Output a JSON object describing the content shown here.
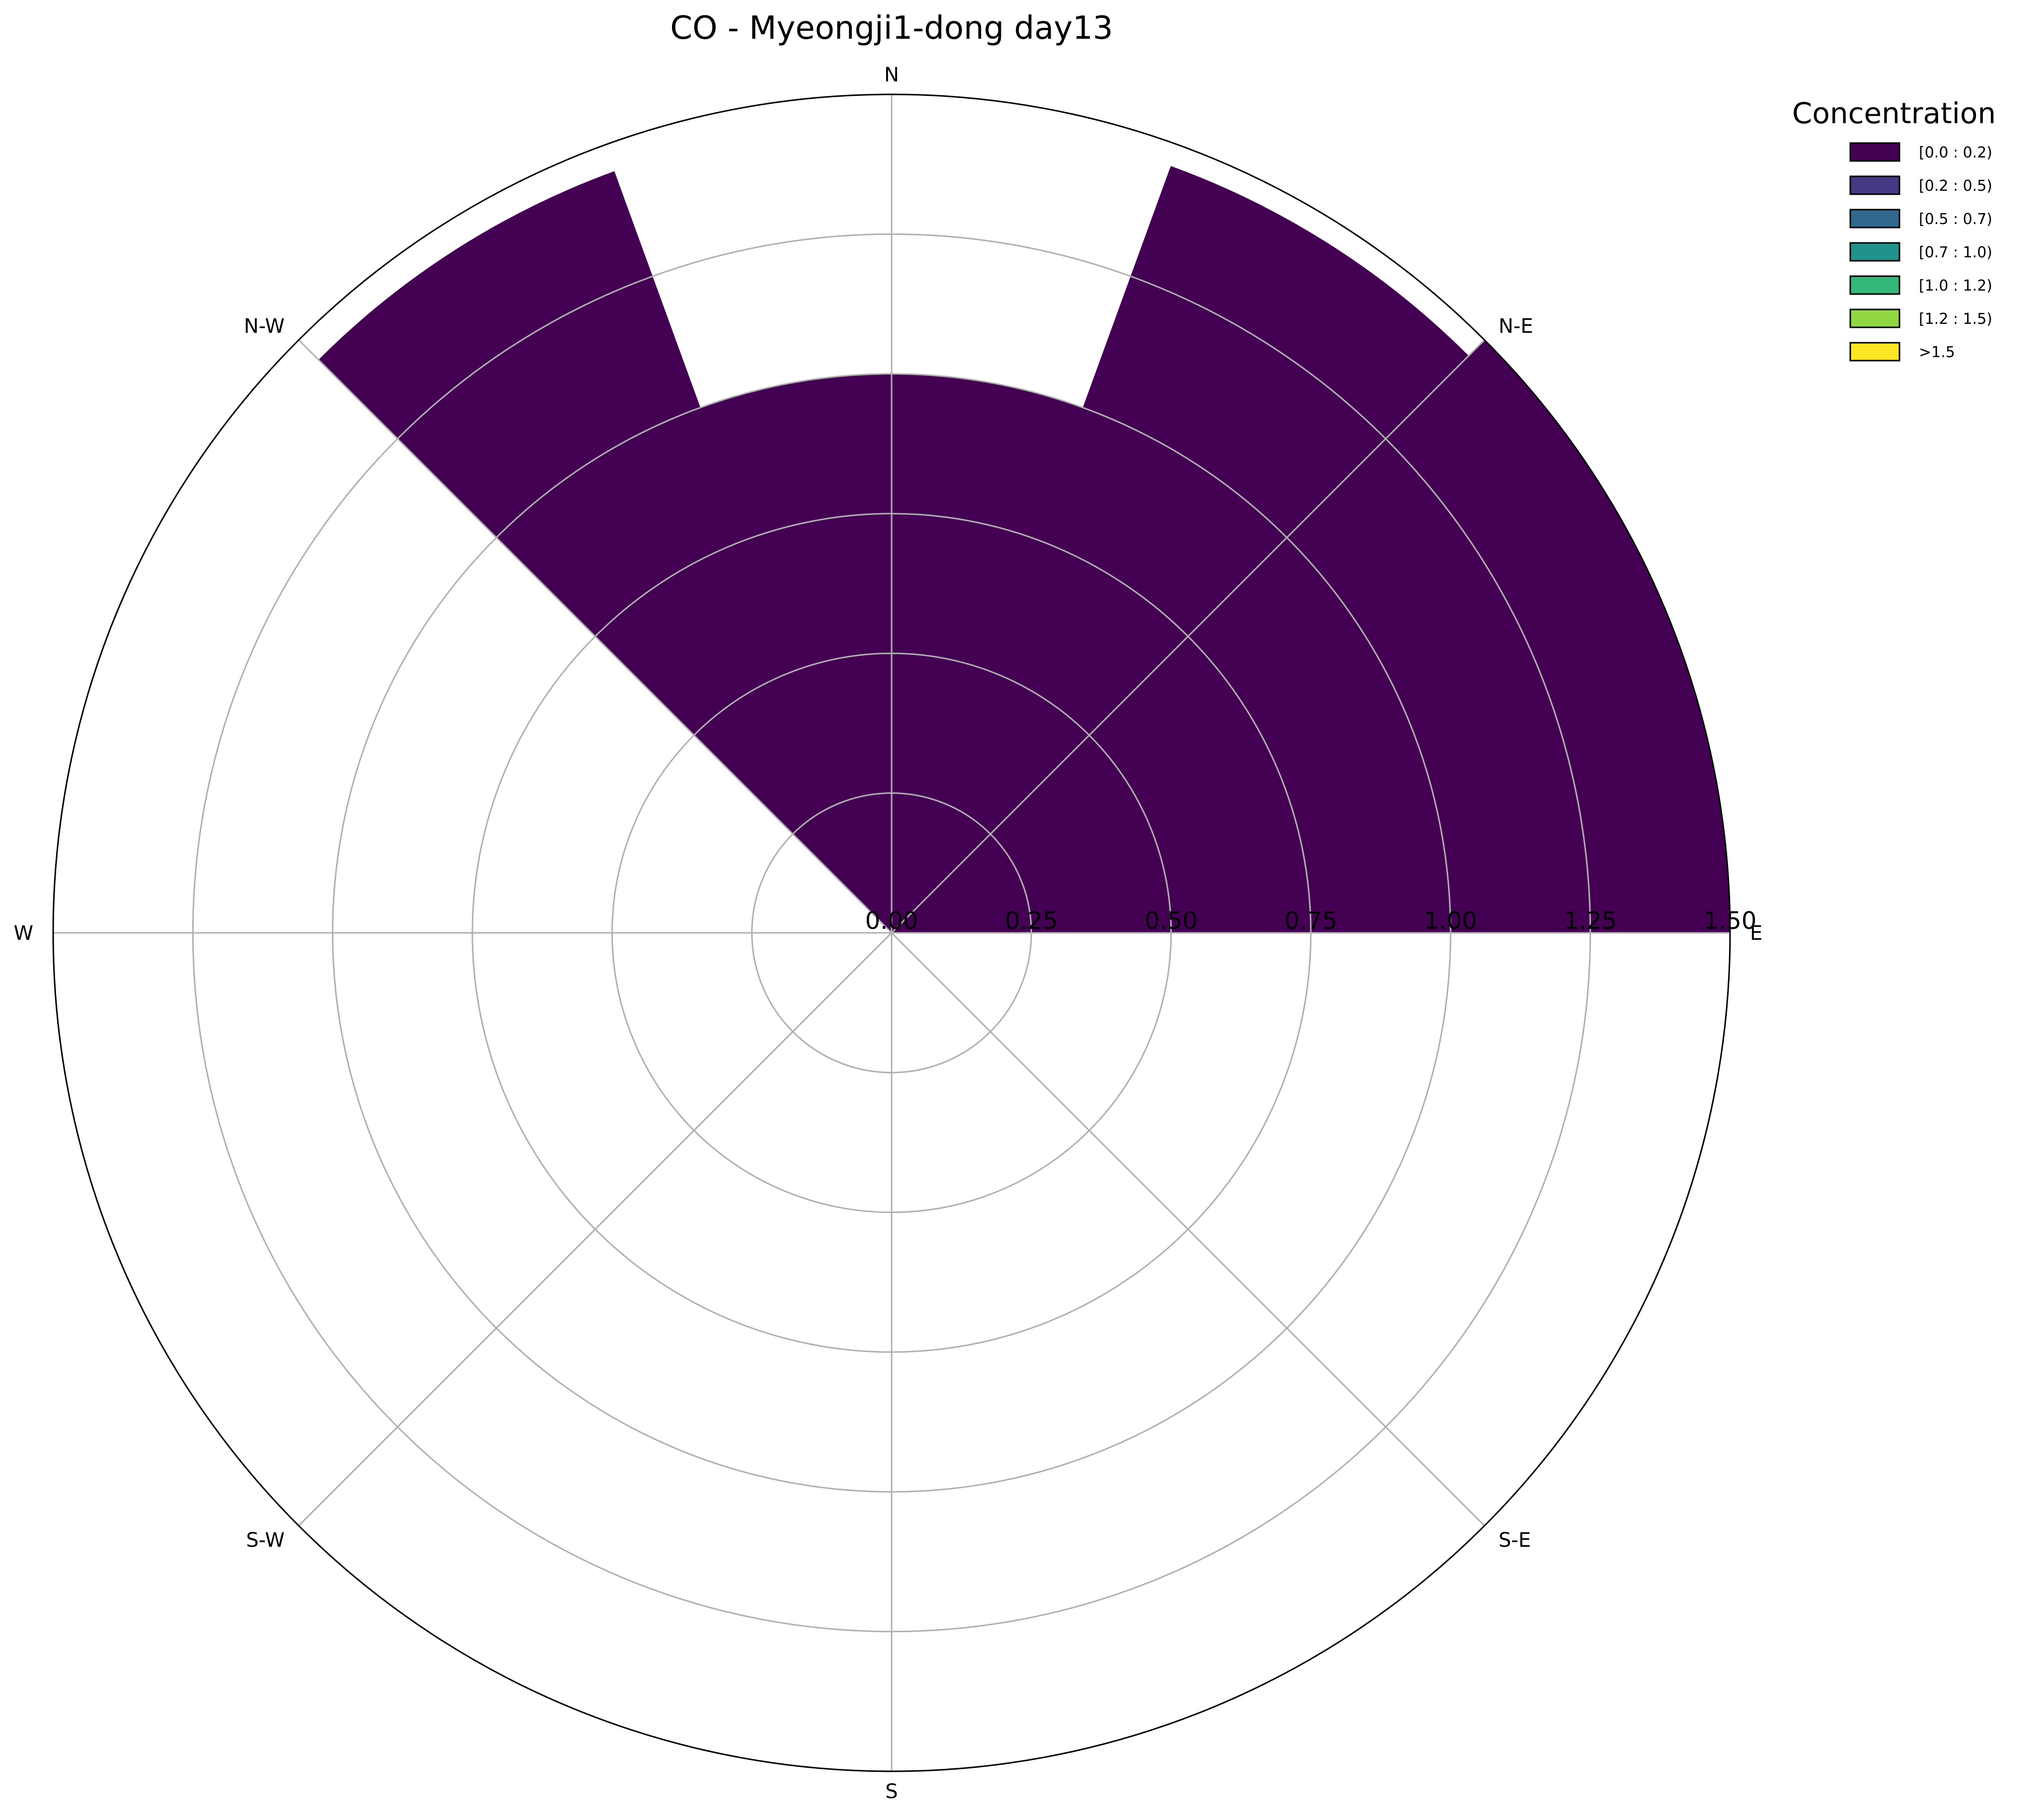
{
  "chart_data": {
    "type": "windrose",
    "title": "CO - Myeongji1-dong day13",
    "directions": [
      "N",
      "N-E",
      "E",
      "S-E",
      "S",
      "S-W",
      "W",
      "N-W"
    ],
    "direction_angles_deg": [
      0,
      45,
      90,
      135,
      180,
      225,
      270,
      315
    ],
    "radial_ticks": [
      "0.00",
      "0.25",
      "0.50",
      "0.75",
      "1.00",
      "1.25",
      "1.50"
    ],
    "radial_tick_values": [
      0,
      0.25,
      0.5,
      0.75,
      1.0,
      1.25,
      1.5
    ],
    "rlim": [
      0,
      1.5
    ],
    "grid": true,
    "legend": {
      "title": "Concentration",
      "placement": "top-right outside",
      "entries": [
        {
          "label": "[0.0 : 0.2)",
          "color": "#440154"
        },
        {
          "label": "[0.2 : 0.5)",
          "color": "#443983"
        },
        {
          "label": "[0.5 : 0.7)",
          "color": "#31688e"
        },
        {
          "label": "[0.7 : 1.0)",
          "color": "#21918c"
        },
        {
          "label": "[1.0 : 1.2)",
          "color": "#35b779"
        },
        {
          "label": "[1.2 : 1.5)",
          "color": "#90d743"
        },
        {
          "label": ">1.5",
          "color": "#fde725"
        }
      ]
    },
    "series": [
      {
        "name": "[0.0 : 0.2)",
        "color": "#440154",
        "sectors": [
          {
            "theta_start_deg": 0,
            "theta_end_deg": 45,
            "r_inner": 0,
            "r_outer": 1.5
          },
          {
            "theta_start_deg": 45,
            "theta_end_deg": 90,
            "r_inner": 0,
            "r_outer": 1.5
          },
          {
            "theta_start_deg": 315,
            "theta_end_deg": 360,
            "r_inner": 0,
            "r_outer": 1.5
          },
          {
            "theta_start_deg": 330,
            "theta_end_deg": 30,
            "r_inner": 0,
            "r_outer": 1.0,
            "note_fill": "center gap"
          }
        ]
      }
    ]
  }
}
